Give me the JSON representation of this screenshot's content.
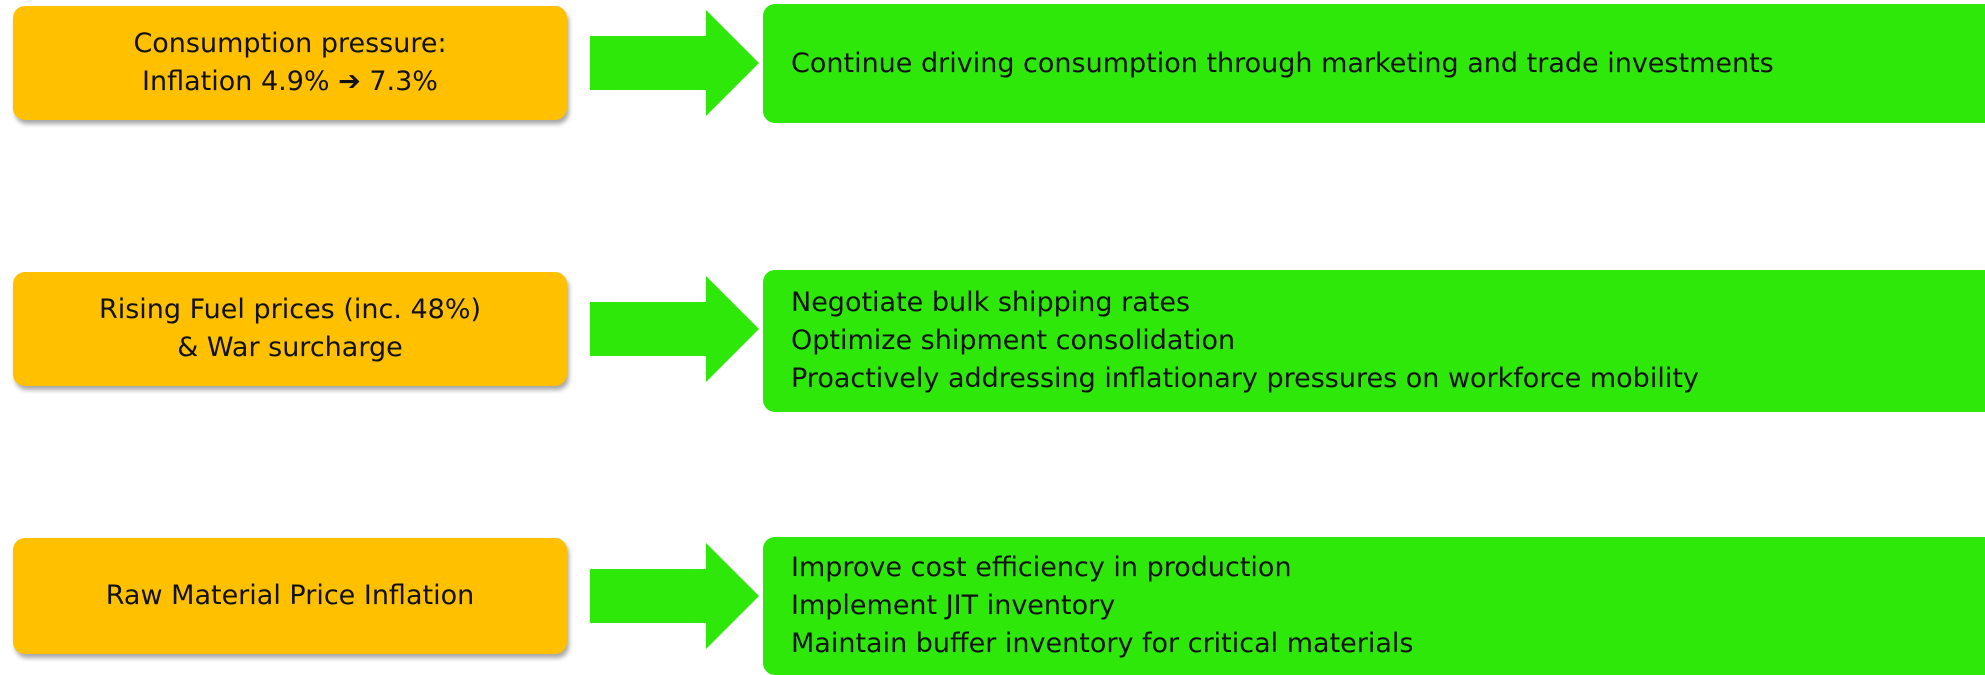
{
  "rows": [
    {
      "cause": [
        "Consumption pressure:",
        "Inflation 4.9% ➔ 7.3%"
      ],
      "actions": [
        "Continue driving consumption through marketing and trade investments"
      ]
    },
    {
      "cause": [
        "Rising Fuel prices (inc. 48%)",
        "& War surcharge"
      ],
      "actions": [
        "Negotiate bulk shipping rates",
        "Optimize shipment consolidation",
        "Proactively addressing inflationary pressures on workforce mobility"
      ]
    },
    {
      "cause": [
        "Raw Material Price Inflation"
      ],
      "actions": [
        "Improve cost efficiency in production",
        "Implement JIT inventory",
        "Maintain buffer inventory for critical materials"
      ]
    }
  ]
}
